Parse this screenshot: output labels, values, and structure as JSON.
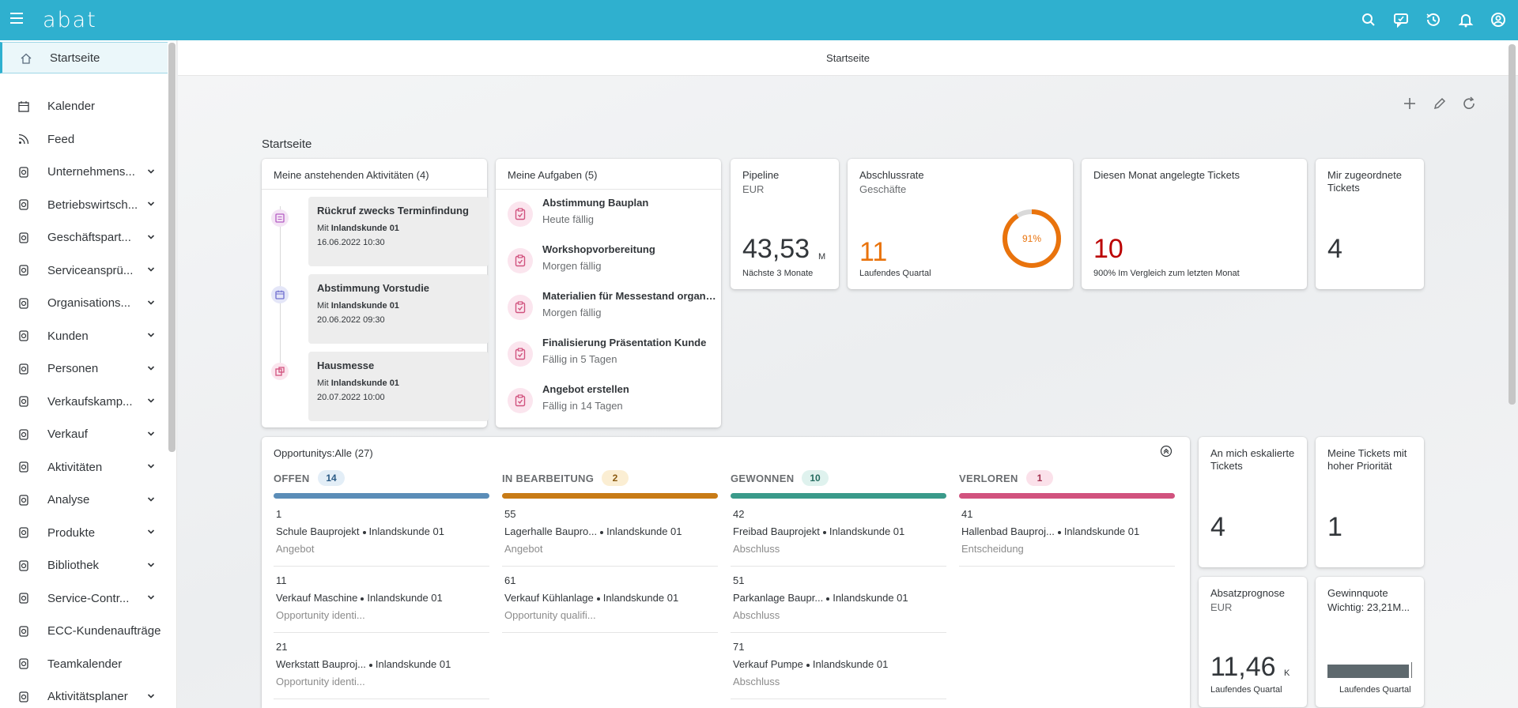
{
  "shell": {
    "logo": "abat"
  },
  "nav": {
    "items": [
      {
        "label": "Startseite",
        "icon": "home-icon",
        "expandable": false,
        "active": true
      },
      {
        "label": "Kalender",
        "icon": "calendar-icon",
        "expandable": false
      },
      {
        "label": "Feed",
        "icon": "feed-icon",
        "expandable": false
      },
      {
        "label": "Unternehmens...",
        "icon": "building-icon",
        "expandable": true
      },
      {
        "label": "Betriebswirtsch...",
        "icon": "org-icon",
        "expandable": true
      },
      {
        "label": "Geschäftspart...",
        "icon": "partner-icon",
        "expandable": true
      },
      {
        "label": "Serviceansprü...",
        "icon": "service-icon",
        "expandable": true
      },
      {
        "label": "Organisations...",
        "icon": "organisation-icon",
        "expandable": true
      },
      {
        "label": "Kunden",
        "icon": "customers-icon",
        "expandable": true
      },
      {
        "label": "Personen",
        "icon": "contact-icon",
        "expandable": true
      },
      {
        "label": "Verkaufskamp...",
        "icon": "megaphone-icon",
        "expandable": true
      },
      {
        "label": "Verkauf",
        "icon": "sales-icon",
        "expandable": true
      },
      {
        "label": "Aktivitäten",
        "icon": "activities-icon",
        "expandable": true
      },
      {
        "label": "Analyse",
        "icon": "analysis-icon",
        "expandable": true
      },
      {
        "label": "Produkte",
        "icon": "product-icon",
        "expandable": true
      },
      {
        "label": "Bibliothek",
        "icon": "library-icon",
        "expandable": true
      },
      {
        "label": "Service-Contr...",
        "icon": "settings-icon",
        "expandable": true
      },
      {
        "label": "ECC-Kundenaufträge",
        "icon": "orders-icon",
        "expandable": false
      },
      {
        "label": "Teamkalender",
        "icon": "team-calendar-icon",
        "expandable": false
      },
      {
        "label": "Aktivitätsplaner",
        "icon": "planner-icon",
        "expandable": true
      }
    ]
  },
  "page": {
    "header_title": "Startseite",
    "section_title": "Startseite"
  },
  "activities": {
    "title": "Meine anstehenden Aktivitäten (4)",
    "items": [
      {
        "title": "Rückruf zwecks Terminfindung",
        "with_prefix": "Mit",
        "with": "Inlandskunde 01",
        "date": "16.06.2022 10:30"
      },
      {
        "title": "Abstimmung Vorstudie",
        "with_prefix": "Mit",
        "with": "Inlandskunde 01",
        "date": "20.06.2022 09:30"
      },
      {
        "title": "Hausmesse",
        "with_prefix": "Mit",
        "with": "Inlandskunde 01",
        "date": "20.07.2022 10:00"
      }
    ]
  },
  "tasks": {
    "title": "Meine Aufgaben (5)",
    "items": [
      {
        "title": "Abstimmung Bauplan",
        "due": "Heute fällig"
      },
      {
        "title": "Workshopvorbereitung",
        "due": "Morgen fällig"
      },
      {
        "title": "Materialien für Messestand organisieren",
        "due": "Morgen fällig"
      },
      {
        "title": "Finalisierung Präsentation Kunde",
        "due": "Fällig in 5 Tagen"
      },
      {
        "title": "Angebot erstellen",
        "due": "Fällig in 14 Tagen"
      }
    ]
  },
  "tiles": {
    "pipeline": {
      "title": "Pipeline",
      "subtitle": "EUR",
      "value": "43,53",
      "unit": "M",
      "footer": "Nächste 3 Monate"
    },
    "closing": {
      "title": "Abschlussrate",
      "subtitle": "Geschäfte",
      "value": "11",
      "footer": "Laufendes Quartal",
      "percent_label": "91%",
      "percent": 0.91,
      "color": "#e9730c"
    },
    "tickets_month": {
      "title": "Diesen Monat angelegte Tickets",
      "value": "10",
      "footer": "900% Im Vergleich zum letzten Monat",
      "color": "#bb0000"
    },
    "assigned": {
      "title": "Mir zugeordnete Tickets",
      "value": "4"
    },
    "escalated": {
      "title": "An mich eskalierte Tickets",
      "value": "4"
    },
    "high_prio": {
      "title": "Meine Tickets mit hoher Priorität",
      "value": "1"
    },
    "forecast": {
      "title": "Absatzprognose",
      "subtitle": "EUR",
      "value": "11,46",
      "unit": "K",
      "footer": "Laufendes Quartal"
    },
    "win_rate": {
      "title": "Gewinnquote",
      "subtitle": "Wichtig: 23,21M...",
      "footer": "Laufendes Quartal",
      "bar_fill": 0.97
    }
  },
  "opportunities": {
    "title": "Opportunitys:Alle (27)",
    "columns": [
      {
        "label": "OFFEN",
        "count": "14",
        "color": "#5b8db8",
        "badge_bg": "#e3eef7",
        "badge_fg": "#2a5a85",
        "items": [
          {
            "number": "1",
            "name": "Schule Bauprojekt",
            "customer": "Inlandskunde 01",
            "status": "Angebot"
          },
          {
            "number": "11",
            "name": "Verkauf Maschine",
            "customer": "Inlandskunde 01",
            "status": "Opportunity identi..."
          },
          {
            "number": "21",
            "name": "Werkstatt Bauproj...",
            "customer": "Inlandskunde 01",
            "status": "Opportunity identi..."
          }
        ]
      },
      {
        "label": "IN BEARBEITUNG",
        "count": "2",
        "color": "#c87b16",
        "badge_bg": "#fbeed3",
        "badge_fg": "#8a5a10",
        "items": [
          {
            "number": "55",
            "name": "Lagerhalle Baupro...",
            "customer": "Inlandskunde 01",
            "status": "Angebot"
          },
          {
            "number": "61",
            "name": "Verkauf Kühlanlage",
            "customer": "Inlandskunde 01",
            "status": "Opportunity qualifi..."
          }
        ]
      },
      {
        "label": "GEWONNEN",
        "count": "10",
        "color": "#3a9a8a",
        "badge_bg": "#dff2ee",
        "badge_fg": "#256c60",
        "items": [
          {
            "number": "42",
            "name": "Freibad Bauprojekt",
            "customer": "Inlandskunde 01",
            "status": "Abschluss"
          },
          {
            "number": "51",
            "name": "Parkanlage Baupr...",
            "customer": "Inlandskunde 01",
            "status": "Abschluss"
          },
          {
            "number": "71",
            "name": "Verkauf Pumpe",
            "customer": "Inlandskunde 01",
            "status": "Abschluss"
          }
        ]
      },
      {
        "label": "VERLOREN",
        "count": "1",
        "color": "#d1527e",
        "badge_bg": "#fbe1ea",
        "badge_fg": "#a3304f",
        "items": [
          {
            "number": "41",
            "name": "Hallenbad Bauproj...",
            "customer": "Inlandskunde 01",
            "status": "Entscheidung"
          }
        ]
      }
    ]
  }
}
